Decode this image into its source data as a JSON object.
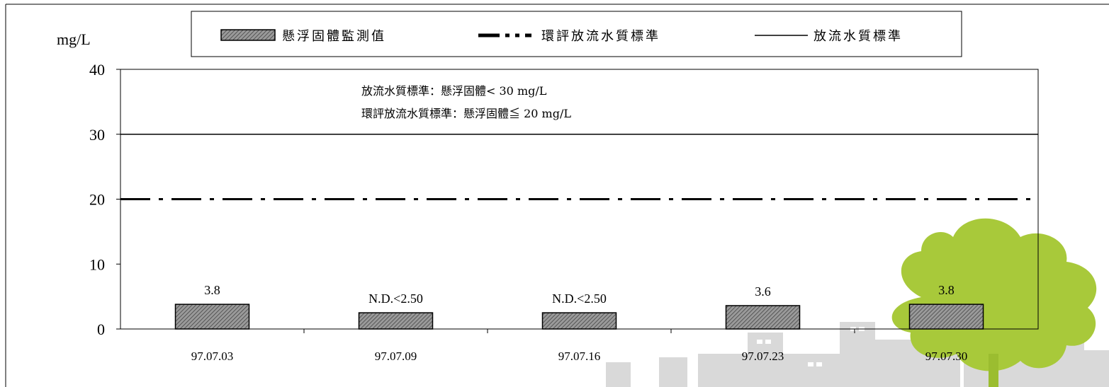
{
  "chart_data": {
    "type": "bar",
    "ylabel": "mg/L",
    "ylim": [
      0,
      40
    ],
    "yticks": [
      0,
      10,
      20,
      30,
      40
    ],
    "categories": [
      "97.07.03",
      "97.07.09",
      "97.07.16",
      "97.07.23",
      "97.07.30"
    ],
    "series": [
      {
        "name": "懸浮固體監測值",
        "values": [
          3.8,
          2.5,
          2.5,
          3.6,
          3.8
        ],
        "labels": [
          "3.8",
          "N.D.<2.50",
          "N.D.<2.50",
          "3.6",
          "3.8"
        ]
      }
    ],
    "reference_lines": [
      {
        "name": "環評放流水質標準",
        "value": 20,
        "style": "dash-dot"
      },
      {
        "name": "放流水質標準",
        "value": 30,
        "style": "solid"
      }
    ],
    "annotations": [
      "放流水質標準：懸浮固體< 30 mg/L",
      "環評放流水質標準：懸浮固體≦ 20 mg/L"
    ],
    "legend_position": "top",
    "grid": false
  },
  "colors": {
    "bar_fill": "#8a8a8a",
    "tree": "#a8c93a",
    "buildings": "#d8d8d8"
  }
}
